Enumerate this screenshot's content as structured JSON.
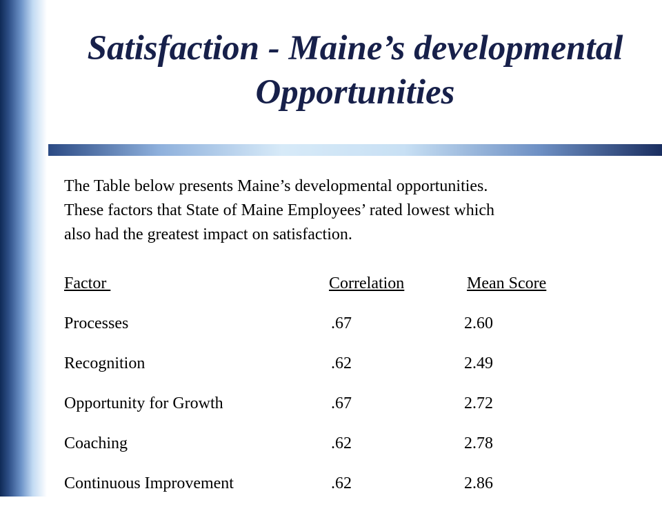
{
  "slide": {
    "title_line1": "Satisfaction - Maine’s developmental",
    "title_line2": "Opportunities",
    "intro_lines": [
      "The Table below presents Maine’s developmental opportunities.",
      "These factors that State of Maine Employees’ rated lowest which",
      "also had the greatest impact on satisfaction."
    ]
  },
  "table": {
    "headers": [
      "Factor ",
      "Correlation",
      "Mean Score"
    ],
    "rows": [
      [
        "Processes",
        ".67",
        "2.60"
      ],
      [
        "Recognition",
        ".62",
        "2.49"
      ],
      [
        "Opportunity for Growth",
        ".67",
        "2.72"
      ],
      [
        "Coaching",
        ".62",
        "2.78"
      ],
      [
        "Continuous Improvement",
        ".62",
        "2.86"
      ]
    ]
  },
  "colors": {
    "title": "#17204a",
    "accent_dark": "#0f2a56",
    "accent_light": "#d7eaf8"
  }
}
